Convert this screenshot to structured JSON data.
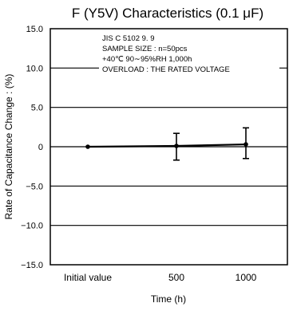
{
  "chart_data": {
    "type": "line",
    "title": "F (Y5V) Characteristics (0.1 μF)",
    "xlabel": "Time  (h)",
    "ylabel": "Rate of Capacitance Change :  (%)",
    "categories": [
      "Initial value",
      "500",
      "1000"
    ],
    "ylim": [
      -15.0,
      15.0
    ],
    "yticks": [
      15.0,
      10.0,
      5.0,
      0,
      -5.0,
      -10.0,
      -15.0
    ],
    "ytick_labels": [
      "15.0",
      "10.0",
      "5.0",
      "0",
      "−5.0",
      "−10.0",
      "−15.0"
    ],
    "grid": "horizontal",
    "series": [
      {
        "values": [
          0.0,
          0.1,
          0.3
        ],
        "error_high": [
          null,
          1.7,
          2.4
        ],
        "error_low": [
          null,
          -1.7,
          -1.5
        ]
      }
    ],
    "annotation_lines": [
      "JIS C 5102 9. 9",
      "SAMPLE SIZE : n=50pcs",
      "+40℃ 90∼95%RH 1,000h",
      "OVERLOAD : THE RATED VOLTAGE"
    ]
  }
}
